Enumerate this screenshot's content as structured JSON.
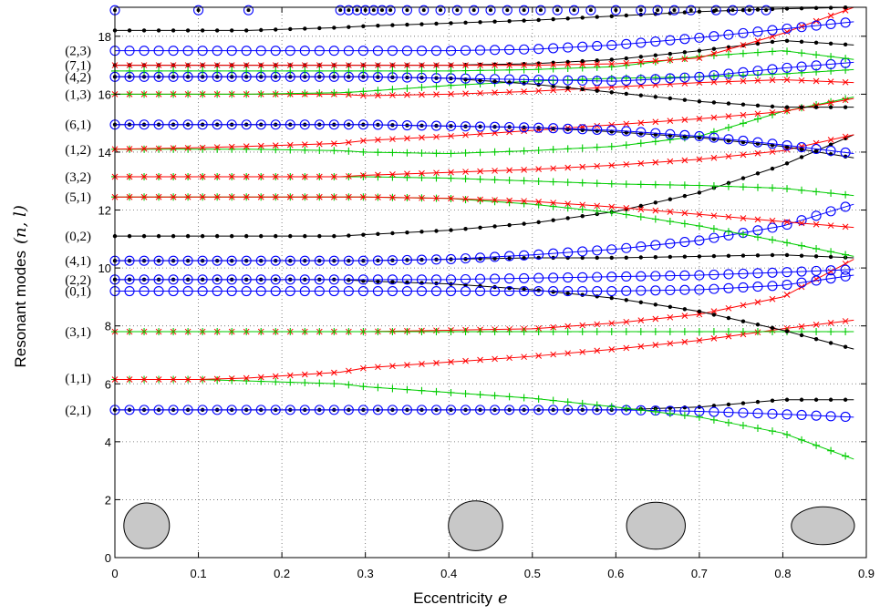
{
  "chart_data": {
    "type": "line",
    "xlabel": "Eccentricity",
    "xlabel_symbol": "e",
    "ylabel": "Resonant modes",
    "ylabel_symbol": "(n, l)",
    "xlim": [
      0,
      0.9
    ],
    "ylim": [
      0,
      19
    ],
    "xticks": [
      "0",
      "0.1",
      "0.2",
      "0.3",
      "0.4",
      "0.5",
      "0.6",
      "0.7",
      "0.8",
      "0.9"
    ],
    "yticks": [
      "0",
      "2",
      "4",
      "6",
      "8",
      "10",
      "12",
      "14",
      "16",
      "18"
    ],
    "grid": true,
    "colors": {
      "black": "#000000",
      "blue": "#0000ff",
      "green": "#00cc00",
      "red": "#ff0000"
    },
    "mode_labels": [
      {
        "label": "(2,3)",
        "y": 17.5
      },
      {
        "label": "(7,1)",
        "y": 17.0
      },
      {
        "label": "(4,2)",
        "y": 16.6
      },
      {
        "label": "(1,3)",
        "y": 16.0
      },
      {
        "label": "(6,1)",
        "y": 14.95
      },
      {
        "label": "(1,2)",
        "y": 14.1
      },
      {
        "label": "(3,2)",
        "y": 13.15
      },
      {
        "label": "(5,1)",
        "y": 12.45
      },
      {
        "label": "(0,2)",
        "y": 11.1
      },
      {
        "label": "(4,1)",
        "y": 10.25
      },
      {
        "label": "(2,2)",
        "y": 9.6
      },
      {
        "label": "(0,1)",
        "y": 9.2
      },
      {
        "label": "(3,1)",
        "y": 7.8
      },
      {
        "label": "(1,1)",
        "y": 6.2
      },
      {
        "label": "(2,1)",
        "y": 5.1
      }
    ],
    "series": [
      {
        "color": "black",
        "marker": "dot",
        "x": [
          0,
          0.1,
          0.16,
          0.27,
          0.3,
          0.4,
          0.5,
          0.6,
          0.7,
          0.8,
          0.885
        ],
        "y": [
          5.1,
          5.1,
          5.1,
          5.1,
          5.1,
          5.1,
          5.1,
          5.1,
          5.2,
          5.45,
          5.45
        ]
      },
      {
        "color": "blue",
        "marker": "circle",
        "x": [
          0,
          0.1,
          0.16,
          0.27,
          0.3,
          0.4,
          0.5,
          0.6,
          0.7,
          0.8,
          0.885
        ],
        "y": [
          5.1,
          5.1,
          5.1,
          5.1,
          5.1,
          5.1,
          5.1,
          5.1,
          5.05,
          4.95,
          4.85
        ]
      },
      {
        "color": "green",
        "marker": "plus",
        "x": [
          0,
          0.1,
          0.16,
          0.27,
          0.3,
          0.4,
          0.5,
          0.6,
          0.7,
          0.8,
          0.885
        ],
        "y": [
          6.15,
          6.15,
          6.1,
          6.0,
          5.9,
          5.7,
          5.5,
          5.2,
          4.85,
          4.3,
          3.4
        ]
      },
      {
        "color": "red",
        "marker": "x",
        "x": [
          0,
          0.1,
          0.16,
          0.27,
          0.3,
          0.4,
          0.5,
          0.6,
          0.7,
          0.8,
          0.885
        ],
        "y": [
          6.15,
          6.15,
          6.2,
          6.4,
          6.55,
          6.75,
          6.95,
          7.2,
          7.5,
          7.9,
          8.2
        ]
      },
      {
        "color": "red",
        "marker": "x",
        "x": [
          0,
          0.1,
          0.16,
          0.27,
          0.3,
          0.4,
          0.5,
          0.6,
          0.7,
          0.8,
          0.885
        ],
        "y": [
          7.8,
          7.8,
          7.8,
          7.8,
          7.8,
          7.85,
          7.9,
          8.1,
          8.4,
          9.0,
          10.3
        ]
      },
      {
        "color": "green",
        "marker": "plus",
        "x": [
          0,
          0.1,
          0.16,
          0.27,
          0.3,
          0.4,
          0.5,
          0.6,
          0.7,
          0.8,
          0.885
        ],
        "y": [
          7.8,
          7.8,
          7.8,
          7.8,
          7.8,
          7.8,
          7.8,
          7.8,
          7.8,
          7.8,
          7.8
        ]
      },
      {
        "color": "black",
        "marker": "dot",
        "x": [
          0,
          0.1,
          0.16,
          0.27,
          0.3,
          0.4,
          0.5,
          0.6,
          0.7,
          0.8,
          0.885
        ],
        "y": [
          9.6,
          9.6,
          9.6,
          9.6,
          9.55,
          9.45,
          9.25,
          8.95,
          8.5,
          7.85,
          7.2
        ]
      },
      {
        "color": "blue",
        "marker": "circle",
        "x": [
          0,
          0.1,
          0.16,
          0.27,
          0.3,
          0.4,
          0.5,
          0.6,
          0.7,
          0.8,
          0.885
        ],
        "y": [
          9.2,
          9.2,
          9.2,
          9.2,
          9.2,
          9.2,
          9.2,
          9.2,
          9.25,
          9.4,
          9.75
        ]
      },
      {
        "color": "blue",
        "marker": "circle",
        "x": [
          0,
          0.1,
          0.16,
          0.27,
          0.3,
          0.4,
          0.5,
          0.6,
          0.7,
          0.8,
          0.885
        ],
        "y": [
          9.6,
          9.6,
          9.6,
          9.6,
          9.6,
          9.6,
          9.65,
          9.7,
          9.75,
          9.85,
          9.95
        ]
      },
      {
        "color": "black",
        "marker": "dot",
        "x": [
          0,
          0.1,
          0.16,
          0.27,
          0.3,
          0.4,
          0.5,
          0.6,
          0.7,
          0.8,
          0.885
        ],
        "y": [
          10.25,
          10.25,
          10.25,
          10.25,
          10.25,
          10.3,
          10.35,
          10.35,
          10.4,
          10.45,
          10.35
        ]
      },
      {
        "color": "blue",
        "marker": "circle",
        "x": [
          0,
          0.1,
          0.16,
          0.27,
          0.3,
          0.4,
          0.5,
          0.6,
          0.7,
          0.8,
          0.885
        ],
        "y": [
          10.25,
          10.25,
          10.25,
          10.25,
          10.25,
          10.3,
          10.45,
          10.65,
          10.95,
          11.45,
          12.2
        ]
      },
      {
        "color": "black",
        "marker": "dot",
        "x": [
          0,
          0.1,
          0.16,
          0.27,
          0.3,
          0.4,
          0.5,
          0.6,
          0.7,
          0.8,
          0.885
        ],
        "y": [
          11.1,
          11.1,
          11.1,
          11.1,
          11.15,
          11.3,
          11.55,
          11.95,
          12.6,
          13.55,
          14.6
        ]
      },
      {
        "color": "green",
        "marker": "plus",
        "x": [
          0,
          0.1,
          0.16,
          0.27,
          0.3,
          0.4,
          0.5,
          0.6,
          0.7,
          0.8,
          0.885
        ],
        "y": [
          12.45,
          12.45,
          12.45,
          12.45,
          12.45,
          12.4,
          12.2,
          11.9,
          11.45,
          10.9,
          10.4
        ]
      },
      {
        "color": "red",
        "marker": "x",
        "x": [
          0,
          0.1,
          0.16,
          0.27,
          0.3,
          0.4,
          0.5,
          0.6,
          0.7,
          0.8,
          0.885
        ],
        "y": [
          12.45,
          12.45,
          12.45,
          12.45,
          12.45,
          12.4,
          12.3,
          12.1,
          11.85,
          11.6,
          11.4
        ]
      },
      {
        "color": "green",
        "marker": "plus",
        "x": [
          0,
          0.1,
          0.16,
          0.27,
          0.3,
          0.4,
          0.5,
          0.6,
          0.7,
          0.8,
          0.885
        ],
        "y": [
          13.15,
          13.15,
          13.15,
          13.15,
          13.15,
          13.1,
          13.0,
          12.9,
          12.85,
          12.75,
          12.5
        ]
      },
      {
        "color": "red",
        "marker": "x",
        "x": [
          0,
          0.1,
          0.16,
          0.27,
          0.3,
          0.4,
          0.5,
          0.6,
          0.7,
          0.8,
          0.885
        ],
        "y": [
          13.15,
          13.15,
          13.15,
          13.15,
          13.2,
          13.3,
          13.4,
          13.55,
          13.75,
          14.05,
          14.6
        ]
      },
      {
        "color": "green",
        "marker": "plus",
        "x": [
          0,
          0.1,
          0.16,
          0.27,
          0.3,
          0.4,
          0.5,
          0.6,
          0.7,
          0.8,
          0.885
        ],
        "y": [
          14.1,
          14.1,
          14.1,
          14.05,
          14.0,
          13.95,
          14.05,
          14.2,
          14.55,
          15.4,
          15.9
        ]
      },
      {
        "color": "red",
        "marker": "x",
        "x": [
          0,
          0.1,
          0.16,
          0.27,
          0.3,
          0.4,
          0.5,
          0.6,
          0.7,
          0.8,
          0.885
        ],
        "y": [
          14.1,
          14.15,
          14.2,
          14.3,
          14.4,
          14.55,
          14.75,
          14.95,
          15.15,
          15.4,
          15.85
        ]
      },
      {
        "color": "black",
        "marker": "dot",
        "x": [
          0,
          0.1,
          0.16,
          0.27,
          0.3,
          0.4,
          0.5,
          0.6,
          0.7,
          0.8,
          0.885
        ],
        "y": [
          14.95,
          14.95,
          14.95,
          14.95,
          14.95,
          14.9,
          14.85,
          14.7,
          14.5,
          14.2,
          13.8
        ]
      },
      {
        "color": "blue",
        "marker": "circle",
        "x": [
          0,
          0.1,
          0.16,
          0.27,
          0.3,
          0.4,
          0.5,
          0.6,
          0.7,
          0.8,
          0.885
        ],
        "y": [
          14.95,
          14.95,
          14.95,
          14.95,
          14.95,
          14.9,
          14.85,
          14.75,
          14.55,
          14.25,
          13.95
        ]
      },
      {
        "color": "red",
        "marker": "x",
        "x": [
          0,
          0.1,
          0.16,
          0.27,
          0.3,
          0.4,
          0.5,
          0.6,
          0.7,
          0.8,
          0.885
        ],
        "y": [
          16.0,
          16.0,
          16.0,
          16.0,
          15.95,
          16.0,
          16.1,
          16.25,
          16.4,
          16.5,
          16.4
        ]
      },
      {
        "color": "green",
        "marker": "plus",
        "x": [
          0,
          0.1,
          0.16,
          0.27,
          0.3,
          0.4,
          0.5,
          0.6,
          0.7,
          0.8,
          0.885
        ],
        "y": [
          16.0,
          16.0,
          16.0,
          16.05,
          16.1,
          16.3,
          16.45,
          16.55,
          16.6,
          16.7,
          16.85
        ]
      },
      {
        "color": "black",
        "marker": "dot",
        "x": [
          0,
          0.1,
          0.16,
          0.27,
          0.3,
          0.4,
          0.5,
          0.6,
          0.7,
          0.8,
          0.885
        ],
        "y": [
          16.6,
          16.6,
          16.6,
          16.6,
          16.6,
          16.55,
          16.35,
          16.05,
          15.75,
          15.55,
          15.55
        ]
      },
      {
        "color": "blue",
        "marker": "circle",
        "x": [
          0,
          0.1,
          0.16,
          0.27,
          0.3,
          0.4,
          0.5,
          0.6,
          0.7,
          0.8,
          0.885
        ],
        "y": [
          16.6,
          16.6,
          16.6,
          16.6,
          16.6,
          16.55,
          16.5,
          16.45,
          16.6,
          16.9,
          17.1
        ]
      },
      {
        "color": "green",
        "marker": "plus",
        "x": [
          0,
          0.1,
          0.16,
          0.27,
          0.3,
          0.4,
          0.5,
          0.6,
          0.7,
          0.8,
          0.885
        ],
        "y": [
          16.8,
          16.8,
          16.8,
          16.8,
          16.8,
          16.8,
          16.85,
          16.95,
          17.3,
          17.5,
          17.2
        ]
      },
      {
        "color": "black",
        "marker": "dot",
        "x": [
          0,
          0.1,
          0.16,
          0.27,
          0.3,
          0.4,
          0.5,
          0.6,
          0.7,
          0.8,
          0.885
        ],
        "y": [
          17.0,
          17.0,
          17.0,
          17.0,
          17.0,
          17.0,
          17.05,
          17.2,
          17.5,
          17.85,
          17.7
        ]
      },
      {
        "color": "red",
        "marker": "x",
        "x": [
          0,
          0.1,
          0.16,
          0.27,
          0.3,
          0.4,
          0.5,
          0.6,
          0.7,
          0.8,
          0.885
        ],
        "y": [
          17.0,
          17.0,
          17.0,
          17.0,
          17.0,
          17.0,
          17.0,
          17.05,
          17.25,
          18.1,
          19.0
        ]
      },
      {
        "color": "blue",
        "marker": "circle",
        "x": [
          0,
          0.1,
          0.16,
          0.27,
          0.3,
          0.4,
          0.5,
          0.6,
          0.7,
          0.8,
          0.885
        ],
        "y": [
          17.5,
          17.5,
          17.5,
          17.5,
          17.5,
          17.5,
          17.55,
          17.7,
          17.95,
          18.25,
          18.5
        ]
      },
      {
        "color": "black",
        "marker": "dot",
        "x": [
          0,
          0.1,
          0.16,
          0.27,
          0.3,
          0.4,
          0.5,
          0.6,
          0.7,
          0.8,
          0.885
        ],
        "y": [
          18.2,
          18.2,
          18.2,
          18.3,
          18.35,
          18.45,
          18.55,
          18.7,
          18.85,
          18.95,
          19.0
        ]
      }
    ],
    "top_circles_x": [
      0,
      0.1,
      0.16,
      0.27,
      0.28,
      0.29,
      0.3,
      0.31,
      0.32,
      0.33,
      0.35,
      0.37,
      0.39,
      0.41,
      0.43,
      0.45,
      0.47,
      0.49,
      0.51,
      0.53,
      0.55,
      0.57,
      0.6,
      0.63,
      0.65,
      0.67,
      0.69,
      0.72,
      0.74,
      0.76,
      0.78
    ],
    "top_circles_y": 18.9,
    "shapes": [
      {
        "e": 0,
        "x": 0.038,
        "y": 1.1
      },
      {
        "e": 0.4,
        "x": 0.432,
        "y": 1.1
      },
      {
        "e": 0.6,
        "x": 0.648,
        "y": 1.1
      },
      {
        "e": 0.8,
        "x": 0.848,
        "y": 1.1
      }
    ]
  }
}
